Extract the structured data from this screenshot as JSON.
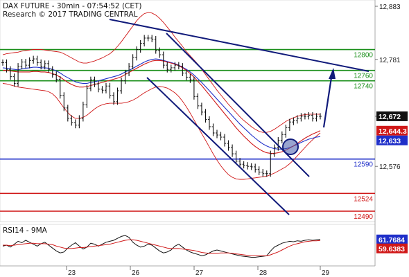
{
  "chart_data": [
    {
      "type": "line",
      "title": "DAX FUTURE - 30min - 07:54:52 (CET)",
      "subtitle": "Research © 2017 TRADING CENTRAL",
      "x_ticks": [
        "23",
        "26",
        "27",
        "28",
        "29"
      ],
      "y_ticks": [
        12883,
        12781,
        12672,
        12576
      ],
      "ylim": [
        12470,
        12895
      ],
      "levels": [
        {
          "label": "12800",
          "value": 12800,
          "color": "#1a8f1a"
        },
        {
          "label": "12760",
          "value": 12760,
          "color": "#1a8f1a"
        },
        {
          "label": "12740",
          "value": 12740,
          "color": "#1a8f1a"
        },
        {
          "label": "12590",
          "value": 12590,
          "color": "#1f2fc9"
        },
        {
          "label": "12524",
          "value": 12524,
          "color": "#d01818"
        },
        {
          "label": "12490",
          "value": 12490,
          "color": "#d01818"
        }
      ],
      "price_tags": [
        {
          "label": "12,672",
          "value": 12672,
          "color": "#111111"
        },
        {
          "label": "12,644.3",
          "value": 12644.3,
          "color": "#d01818"
        },
        {
          "label": "12,633",
          "value": 12633,
          "color": "#1f2fc9"
        }
      ],
      "series": [
        {
          "name": "",
          "role": "price",
          "color": "#111111",
          "values": [
            12775,
            12762,
            12748,
            12735,
            12768,
            12776,
            12770,
            12779,
            12782,
            12775,
            12768,
            12773,
            12762,
            12752,
            12743,
            12712,
            12688,
            12668,
            12660,
            12655,
            12668,
            12694,
            12726,
            12742,
            12734,
            12724,
            12722,
            12730,
            12712,
            12700,
            12721,
            12740,
            12755,
            12768,
            12785,
            12800,
            12812,
            12822,
            12822,
            12820,
            12798,
            12790,
            12770,
            12762,
            12765,
            12770,
            12768,
            12755,
            12747,
            12742,
            12710,
            12692,
            12680,
            12666,
            12652,
            12640,
            12636,
            12632,
            12620,
            12612,
            12600,
            12586,
            12580,
            12578,
            12576,
            12575,
            12570,
            12565,
            12562,
            12562,
            12600,
            12612,
            12626,
            12637,
            12650,
            12661,
            12664,
            12668,
            12672,
            12672,
            12674,
            12668,
            12672,
            12672
          ]
        },
        {
          "name": "",
          "role": "moving-average",
          "color": "#1f2fc9",
          "values": [
            12765,
            12764,
            12763,
            12762,
            12761,
            12763,
            12764,
            12765,
            12766,
            12766,
            12765,
            12765,
            12764,
            12762,
            12759,
            12755,
            12750,
            12746,
            12742,
            12738,
            12736,
            12735,
            12735,
            12737,
            12738,
            12740,
            12742,
            12744,
            12746,
            12748,
            12750,
            12753,
            12757,
            12760,
            12764,
            12768,
            12772,
            12776,
            12779,
            12781,
            12782,
            12781,
            12779,
            12777,
            12775,
            12773,
            12770,
            12766,
            12762,
            12757,
            12751,
            12744,
            12737,
            12729,
            12721,
            12713,
            12705,
            12697,
            12689,
            12681,
            12673,
            12665,
            12657,
            12650,
            12643,
            12636,
            12630,
            12624,
            12619,
            12615,
            12612,
            12610,
            12609,
            12609,
            12610,
            12612,
            12615,
            12618,
            12622,
            12625,
            12628,
            12630,
            12632,
            12633
          ]
        },
        {
          "name": "",
          "role": "moving-average",
          "color": "#d01818",
          "values": [
            12760,
            12760,
            12759,
            12758,
            12757,
            12757,
            12757,
            12757,
            12758,
            12758,
            12757,
            12757,
            12756,
            12754,
            12751,
            12747,
            12742,
            12737,
            12733,
            12730,
            12728,
            12728,
            12729,
            12731,
            12733,
            12735,
            12737,
            12739,
            12741,
            12743,
            12745,
            12748,
            12752,
            12756,
            12760,
            12764,
            12768,
            12772,
            12775,
            12778,
            12779,
            12779,
            12778,
            12776,
            12774,
            12772,
            12769,
            12765,
            12760,
            12754,
            12747,
            12739,
            12731,
            12722,
            12713,
            12704,
            12695,
            12686,
            12677,
            12668,
            12659,
            12650,
            12642,
            12634,
            12627,
            12620,
            12614,
            12609,
            12605,
            12602,
            12601,
            12601,
            12602,
            12604,
            12607,
            12611,
            12615,
            12620,
            12625,
            12630,
            12634,
            12638,
            12641,
            12644.3
          ]
        },
        {
          "name": "",
          "role": "upper-band",
          "color": "#d01818",
          "values": [
            12790,
            12792,
            12793,
            12794,
            12795,
            12797,
            12798,
            12799,
            12800,
            12800,
            12800,
            12799,
            12798,
            12797,
            12796,
            12795,
            12792,
            12788,
            12784,
            12780,
            12776,
            12774,
            12774,
            12776,
            12778,
            12781,
            12784,
            12788,
            12792,
            12798,
            12806,
            12815,
            12825,
            12835,
            12845,
            12855,
            12863,
            12869,
            12871,
            12870,
            12866,
            12860,
            12852,
            12843,
            12834,
            12824,
            12815,
            12806,
            12796,
            12788,
            12780,
            12772,
            12762,
            12752,
            12742,
            12732,
            12722,
            12713,
            12704,
            12695,
            12687,
            12679,
            12671,
            12664,
            12658,
            12652,
            12647,
            12643,
            12641,
            12641,
            12643,
            12647,
            12652,
            12657,
            12662,
            12666,
            12669,
            12672,
            12674,
            12675,
            12676,
            12676,
            12676,
            12676
          ]
        },
        {
          "name": "",
          "role": "lower-band",
          "color": "#d01818",
          "values": [
            12735,
            12734,
            12732,
            12730,
            12728,
            12727,
            12726,
            12725,
            12724,
            12723,
            12722,
            12721,
            12719,
            12715,
            12708,
            12698,
            12688,
            12679,
            12672,
            12668,
            12668,
            12670,
            12674,
            12680,
            12686,
            12691,
            12694,
            12696,
            12697,
            12697,
            12697,
            12697,
            12698,
            12700,
            12703,
            12707,
            12712,
            12717,
            12721,
            12725,
            12728,
            12729,
            12728,
            12726,
            12722,
            12717,
            12710,
            12701,
            12690,
            12678,
            12665,
            12652,
            12639,
            12626,
            12613,
            12600,
            12588,
            12577,
            12568,
            12560,
            12555,
            12552,
            12551,
            12551,
            12552,
            12553,
            12554,
            12555,
            12556,
            12557,
            12560,
            12563,
            12567,
            12571,
            12575,
            12581,
            12588,
            12596,
            12604,
            12612,
            12620,
            12627,
            12634,
            12640
          ]
        }
      ]
    },
    {
      "type": "line",
      "title": "RSI14 - 9MA",
      "x_ticks": [
        "23",
        "26",
        "27",
        "28",
        "29"
      ],
      "ylim": [
        10,
        90
      ],
      "price_tags": [
        {
          "label": "61.7684",
          "value": 61.7684,
          "color": "#1f2fc9"
        },
        {
          "label": "59.6383",
          "value": 59.6383,
          "color": "#d01818"
        }
      ],
      "series": [
        {
          "name": "",
          "role": "rsi",
          "color": "#111111",
          "values": [
            48,
            50,
            46,
            52,
            58,
            55,
            60,
            56,
            52,
            48,
            53,
            56,
            50,
            44,
            38,
            34,
            36,
            44,
            50,
            55,
            48,
            42,
            46,
            54,
            52,
            48,
            52,
            56,
            58,
            60,
            64,
            68,
            70,
            66,
            56,
            50,
            46,
            48,
            52,
            50,
            44,
            38,
            34,
            36,
            40,
            48,
            52,
            46,
            40,
            36,
            33,
            31,
            28,
            30,
            34,
            38,
            40,
            38,
            36,
            34,
            32,
            30,
            28,
            27,
            26,
            25,
            25,
            26,
            27,
            28,
            38,
            46,
            50,
            54,
            56,
            58,
            57,
            59,
            58,
            60,
            61,
            60,
            61,
            61.7684
          ]
        },
        {
          "name": "",
          "role": "rsi-average",
          "color": "#d01818",
          "values": [
            50,
            50,
            49,
            50,
            51,
            52,
            53,
            54,
            54,
            53,
            53,
            53,
            52,
            51,
            48,
            46,
            44,
            43,
            43,
            44,
            45,
            45,
            46,
            47,
            48,
            49,
            50,
            51,
            52,
            54,
            56,
            58,
            60,
            61,
            61,
            60,
            58,
            56,
            54,
            52,
            50,
            48,
            46,
            44,
            43,
            43,
            43,
            42,
            41,
            40,
            39,
            37,
            35,
            34,
            33,
            33,
            33,
            34,
            34,
            34,
            33,
            32,
            31,
            30,
            29,
            28,
            28,
            28,
            28,
            28,
            30,
            33,
            36,
            40,
            44,
            48,
            51,
            53,
            55,
            57,
            58,
            59,
            59,
            59.6383
          ]
        }
      ]
    }
  ]
}
